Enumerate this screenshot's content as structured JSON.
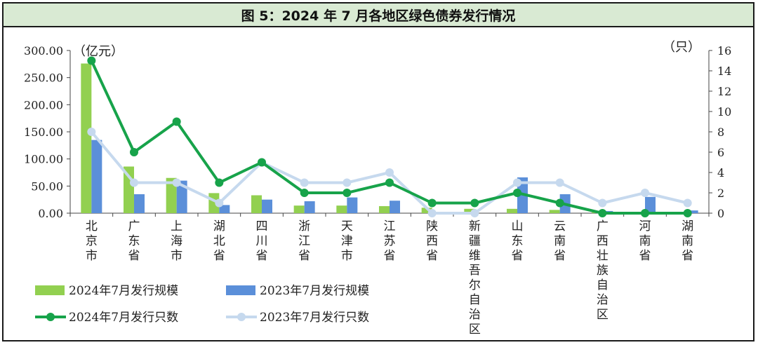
{
  "title": "图 5：2024 年 7 月各地区绿色债券发行情况",
  "colors": {
    "bar_2024": "#92d050",
    "bar_2023": "#5b8fd9",
    "line_2024": "#17a34a",
    "line_2023": "#c6d9ee",
    "title_bg": "#d9ead3"
  },
  "chart_data": {
    "type": "bar",
    "title": "图 5：2024 年 7 月各地区绿色债券发行情况",
    "categories": [
      "北京市",
      "广东省",
      "上海市",
      "湖北省",
      "四川省",
      "浙江省",
      "天津市",
      "江苏省",
      "陕西省",
      "新疆维吾尔自治区",
      "山东省",
      "云南省",
      "广西壮族自治区",
      "河南省",
      "湖南省"
    ],
    "y_left": {
      "unit": "（亿元）",
      "ylim": [
        0,
        300
      ],
      "ticks": [
        "0.00",
        "50.00",
        "100.00",
        "150.00",
        "200.00",
        "250.00",
        "300.00"
      ]
    },
    "y_right": {
      "unit": "（只）",
      "ylim": [
        0,
        16
      ],
      "ticks": [
        "0",
        "2",
        "4",
        "6",
        "8",
        "10",
        "12",
        "14",
        "16"
      ]
    },
    "series": [
      {
        "name": "2024年7月发行规模",
        "type": "bar",
        "axis": "left",
        "values": [
          276,
          86,
          65,
          37,
          33,
          14,
          14,
          13,
          10,
          8,
          8,
          6,
          2,
          0,
          0
        ]
      },
      {
        "name": "2023年7月发行规模",
        "type": "bar",
        "axis": "left",
        "values": [
          135,
          35,
          60,
          15,
          25,
          22,
          29,
          23,
          0,
          0,
          66,
          35,
          4,
          30,
          5
        ]
      },
      {
        "name": "2024年7月发行只数",
        "type": "line",
        "axis": "right",
        "values": [
          15,
          6,
          9,
          3,
          5,
          2,
          2,
          3,
          1,
          1,
          2,
          1,
          0,
          0,
          0
        ]
      },
      {
        "name": "2023年7月发行只数",
        "type": "line",
        "axis": "right",
        "values": [
          8,
          3,
          3,
          1,
          5,
          3,
          3,
          4,
          0,
          0,
          3,
          3,
          1,
          2,
          1
        ]
      }
    ],
    "grid": false,
    "legend_position": "bottom-left"
  }
}
